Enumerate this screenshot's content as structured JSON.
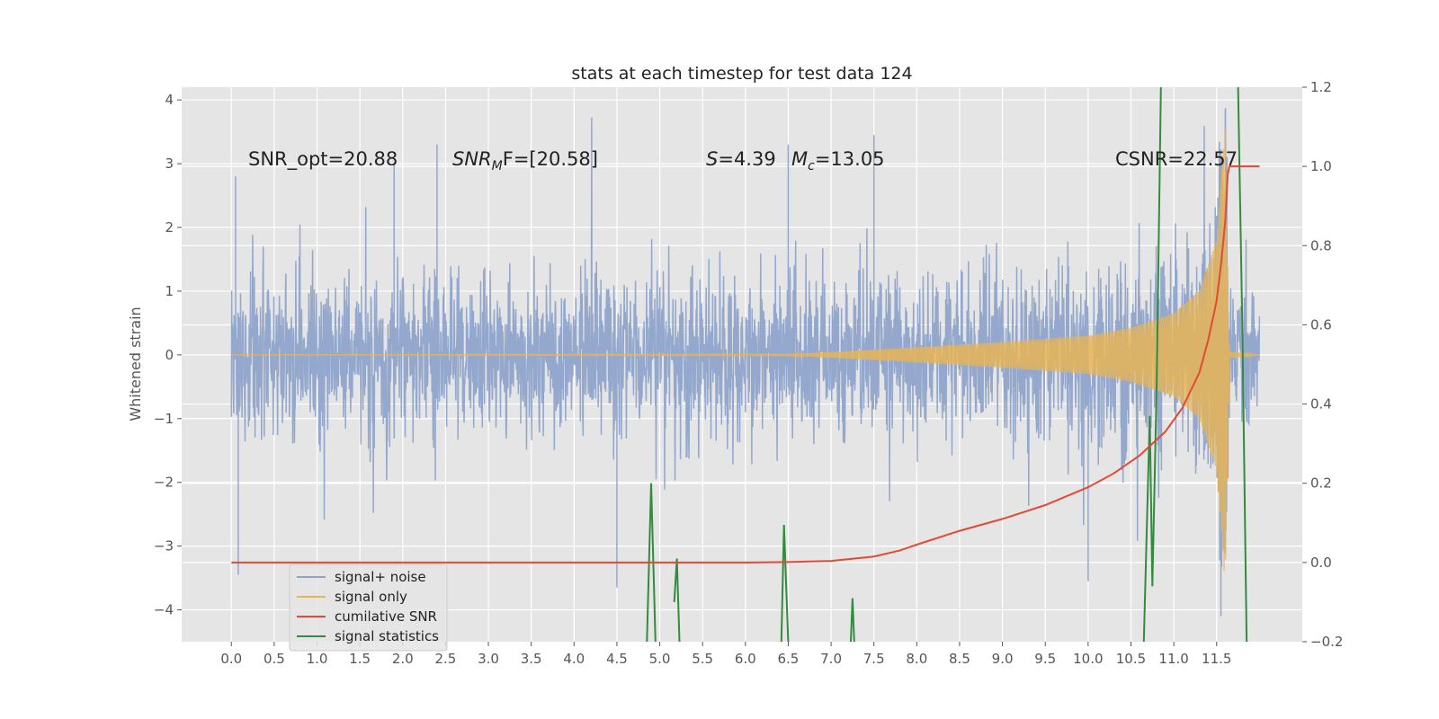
{
  "chart_data": {
    "type": "line",
    "title": "stats at each timestep for test data 124",
    "xlabel": "",
    "ylabel": "Whitened strain",
    "xlim": [
      -0.58,
      12.5
    ],
    "ylim": [
      -4.5,
      4.2
    ],
    "y2lim": [
      -0.2,
      1.2
    ],
    "x_ticks": [
      "0.0",
      "0.5",
      "1.0",
      "1.5",
      "2.0",
      "2.5",
      "3.0",
      "3.5",
      "4.0",
      "4.5",
      "5.0",
      "5.5",
      "6.0",
      "6.5",
      "7.0",
      "7.5",
      "8.0",
      "8.5",
      "9.0",
      "9.5",
      "10.0",
      "10.5",
      "11.0",
      "11.5"
    ],
    "y_ticks": [
      "−4",
      "−3",
      "−2",
      "−1",
      "0",
      "1",
      "2",
      "3",
      "4"
    ],
    "y2_ticks": [
      "−0.2",
      "0.0",
      "0.2",
      "0.4",
      "0.6",
      "0.8",
      "1.0",
      "1.2"
    ],
    "grid": true,
    "legend_position": "lower-left",
    "annotations": {
      "snr_opt": "SNR_opt=20.88",
      "snr_mf_prefix": "SNR",
      "snr_mf_sub": "M",
      "snr_mf_suffix": "F=[20.58]",
      "s_label": "S",
      "s_value": "=4.39",
      "mc_label": "M",
      "mc_sub": "c",
      "mc_value": "=13.05",
      "csnr": "CSNR=22.57"
    },
    "series": [
      {
        "name": "signal+ noise",
        "axis": "left",
        "color": "#8fa4cb",
        "t_start": 0.0,
        "t_end": 12.0,
        "noise_envelope": 1.2,
        "notable_spikes": [
          {
            "x": 0.05,
            "y": 2.8
          },
          {
            "x": 0.08,
            "y": -3.45
          },
          {
            "x": 1.9,
            "y": 3.0
          },
          {
            "x": 2.4,
            "y": 3.3
          },
          {
            "x": 4.5,
            "y": -3.65
          },
          {
            "x": 6.0,
            "y": -0.9
          },
          {
            "x": 6.5,
            "y": 3.3
          },
          {
            "x": 7.5,
            "y": 3.45
          },
          {
            "x": 10.0,
            "y": -3.55
          },
          {
            "x": 11.55,
            "y": -4.1
          },
          {
            "x": 11.6,
            "y": 3.85
          }
        ]
      },
      {
        "name": "signal only",
        "axis": "left",
        "color": "#e8b556",
        "description_points": [
          {
            "x": 0.0,
            "amp": 0.0
          },
          {
            "x": 6.5,
            "amp": 0.01
          },
          {
            "x": 7.5,
            "amp": 0.08
          },
          {
            "x": 9.0,
            "amp": 0.2
          },
          {
            "x": 10.0,
            "amp": 0.3
          },
          {
            "x": 10.5,
            "amp": 0.42
          },
          {
            "x": 11.0,
            "amp": 0.65
          },
          {
            "x": 11.3,
            "amp": 1.0
          },
          {
            "x": 11.5,
            "amp": 1.8
          },
          {
            "x": 11.6,
            "amp": 3.6
          },
          {
            "x": 11.65,
            "amp": 0.05
          },
          {
            "x": 12.0,
            "amp": 0.0
          }
        ]
      },
      {
        "name": "cumilative SNR",
        "axis": "right",
        "color": "#e24a33",
        "x": [
          0.0,
          1.0,
          2.0,
          3.0,
          4.0,
          5.0,
          6.0,
          6.5,
          7.0,
          7.5,
          7.8,
          8.0,
          8.5,
          9.0,
          9.5,
          10.0,
          10.3,
          10.6,
          10.9,
          11.1,
          11.3,
          11.4,
          11.5,
          11.55,
          11.6,
          11.63,
          11.65,
          12.0
        ],
        "values": [
          0.0,
          0.0,
          0.0,
          0.0,
          0.0,
          0.0,
          0.0,
          0.001,
          0.004,
          0.015,
          0.03,
          0.045,
          0.08,
          0.11,
          0.145,
          0.19,
          0.225,
          0.27,
          0.33,
          0.39,
          0.48,
          0.56,
          0.66,
          0.75,
          0.86,
          0.98,
          1.0,
          1.0
        ]
      },
      {
        "name": "signal statistics",
        "axis": "right",
        "color": "#348a3e",
        "segments": [
          [
            {
              "x": 4.85,
              "y": -0.2
            },
            {
              "x": 4.9,
              "y": 0.2
            },
            {
              "x": 4.95,
              "y": -0.2
            }
          ],
          [
            {
              "x": 5.17,
              "y": -0.1
            },
            {
              "x": 5.2,
              "y": 0.01
            },
            {
              "x": 5.23,
              "y": -0.2
            }
          ],
          [
            {
              "x": 6.42,
              "y": -0.2
            },
            {
              "x": 6.45,
              "y": 0.095
            },
            {
              "x": 6.5,
              "y": -0.2
            }
          ],
          [
            {
              "x": 7.23,
              "y": -0.2
            },
            {
              "x": 7.25,
              "y": -0.09
            },
            {
              "x": 7.27,
              "y": -0.2
            }
          ],
          [
            {
              "x": 10.65,
              "y": -0.2
            },
            {
              "x": 10.72,
              "y": 0.37
            },
            {
              "x": 10.75,
              "y": -0.06
            },
            {
              "x": 10.8,
              "y": 0.45
            },
            {
              "x": 10.85,
              "y": 1.2
            }
          ],
          [
            {
              "x": 11.75,
              "y": 1.2
            },
            {
              "x": 11.8,
              "y": 0.6
            },
            {
              "x": 11.85,
              "y": -0.2
            }
          ]
        ]
      }
    ]
  }
}
